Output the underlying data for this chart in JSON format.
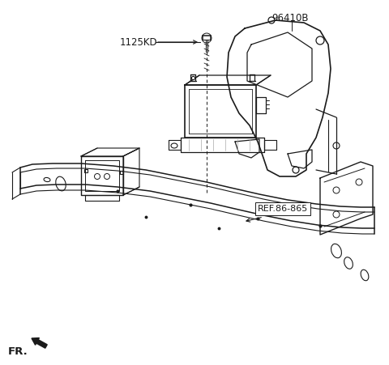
{
  "bg_color": "#ffffff",
  "line_color": "#1a1a1a",
  "gray_color": "#888888",
  "label_1125KD": "1125KD",
  "label_96410B": "96410B",
  "label_REF": "REF.86-865",
  "label_FR": "FR.",
  "fig_width": 4.8,
  "fig_height": 4.51,
  "dpi": 100
}
